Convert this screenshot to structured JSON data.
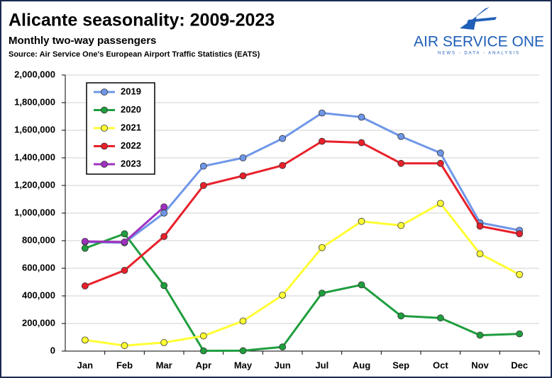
{
  "chart_data": {
    "type": "line",
    "title": "Alicante seasonality: 2009-2023",
    "subtitle": "Monthly two-way passengers",
    "source": "Source: Air Service One's European Airport Traffic Statistics (EATS)",
    "logo": {
      "name": "AIR SERVICE ONE",
      "tagline": "NEWS - DATA - ANALYSIS"
    },
    "categories": [
      "Jan",
      "Feb",
      "Mar",
      "Apr",
      "May",
      "Jun",
      "Jul",
      "Aug",
      "Sep",
      "Oct",
      "Nov",
      "Dec"
    ],
    "series": [
      {
        "name": "2019",
        "color": "#6f97e8",
        "values": [
          790000,
          785000,
          1000000,
          1340000,
          1400000,
          1540000,
          1725000,
          1695000,
          1555000,
          1435000,
          930000,
          875000
        ]
      },
      {
        "name": "2020",
        "color": "#1f9e3e",
        "values": [
          745000,
          850000,
          475000,
          2000,
          3000,
          30000,
          420000,
          480000,
          255000,
          240000,
          115000,
          125000
        ]
      },
      {
        "name": "2021",
        "color": "#ffff33",
        "values": [
          80000,
          40000,
          62000,
          110000,
          218000,
          405000,
          750000,
          940000,
          910000,
          1070000,
          705000,
          555000
        ]
      },
      {
        "name": "2022",
        "color": "#e8202a",
        "values": [
          472000,
          585000,
          830000,
          1200000,
          1270000,
          1345000,
          1520000,
          1510000,
          1360000,
          1360000,
          905000,
          850000
        ]
      },
      {
        "name": "2023",
        "color": "#a030c0",
        "values": [
          795000,
          790000,
          1045000,
          null,
          null,
          null,
          null,
          null,
          null,
          null,
          null,
          null
        ]
      }
    ],
    "ylim": [
      0,
      2000000
    ],
    "yticks": [
      0,
      {
        "value": 200000,
        "label": "200,000"
      },
      {
        "value": 400000,
        "label": "400,000"
      },
      {
        "value": 600000,
        "label": "600,000"
      },
      {
        "value": 800000,
        "label": "800,000"
      },
      {
        "value": 1000000,
        "label": "1,000,000"
      },
      {
        "value": 1200000,
        "label": "1,200,000"
      },
      {
        "value": 1400000,
        "label": "1,400,000"
      },
      {
        "value": 1600000,
        "label": "1,600,000"
      },
      {
        "value": 1800000,
        "label": "1,800,000"
      },
      {
        "value": 2000000,
        "label": "2,000,000"
      }
    ],
    "grid": true,
    "legend": "upper left"
  }
}
